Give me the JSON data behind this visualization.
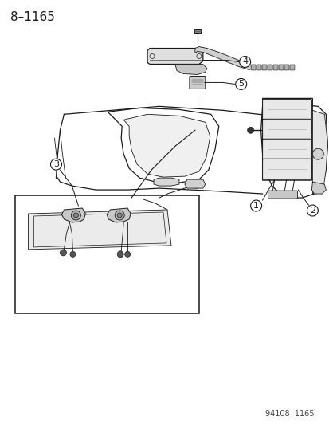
{
  "title": "8–1165",
  "footer": "94108  1165",
  "bg_color": "#ffffff",
  "line_color": "#1a1a1a",
  "fig_width": 4.14,
  "fig_height": 5.33,
  "dpi": 100,
  "title_fontsize": 11,
  "footer_fontsize": 7,
  "callout_fontsize": 8
}
